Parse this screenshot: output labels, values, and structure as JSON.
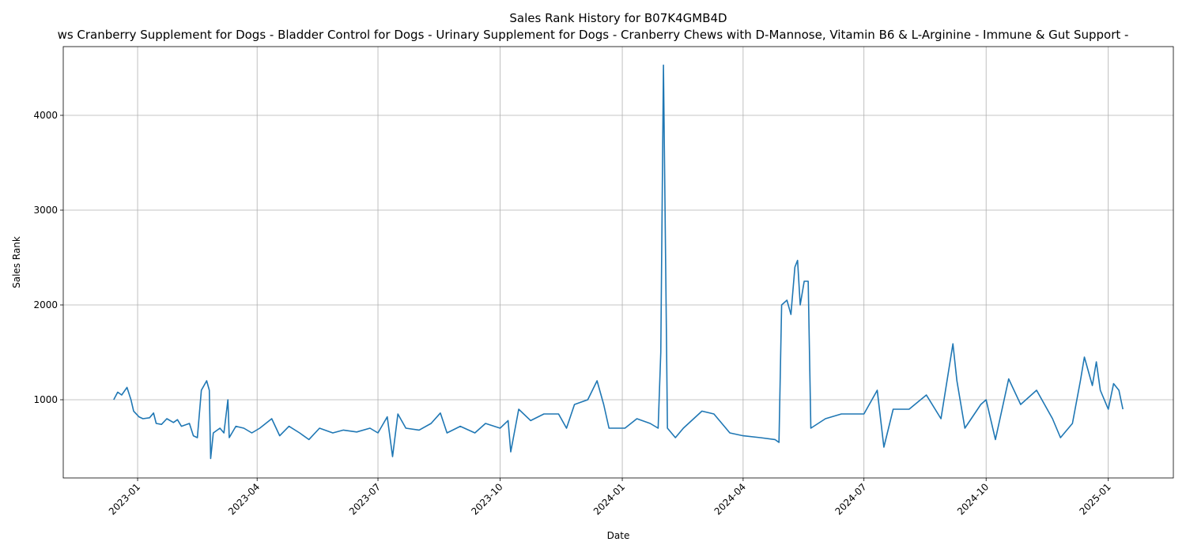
{
  "chart_data": {
    "type": "line",
    "title": "Sales Rank History for B07K4GMB4D",
    "subtitle": "ws Cranberry Supplement for Dogs - Bladder Control for Dogs - Urinary Supplement for Dogs - Cranberry Chews with D-Mannose, Vitamin B6 & L-Arginine - Immune & Gut Support -",
    "x_label": "Date",
    "y_label": "Sales Rank",
    "grid": true,
    "xlim": [
      "2022-11-06",
      "2025-02-19"
    ],
    "xticks": [
      {
        "value": "2023-01-01",
        "label": "2023-01"
      },
      {
        "value": "2023-04-01",
        "label": "2023-04"
      },
      {
        "value": "2023-07-01",
        "label": "2023-07"
      },
      {
        "value": "2023-10-01",
        "label": "2023-10"
      },
      {
        "value": "2024-01-01",
        "label": "2024-01"
      },
      {
        "value": "2024-04-01",
        "label": "2024-04"
      },
      {
        "value": "2024-07-01",
        "label": "2024-07"
      },
      {
        "value": "2024-10-01",
        "label": "2024-10"
      },
      {
        "value": "2025-01-01",
        "label": "2025-01"
      }
    ],
    "ylim": [
      175,
      4725
    ],
    "yticks": [
      1000,
      2000,
      3000,
      4000
    ],
    "x": [
      "2022-12-14",
      "2022-12-17",
      "2022-12-20",
      "2022-12-24",
      "2022-12-27",
      "2022-12-29",
      "2023-01-02",
      "2023-01-05",
      "2023-01-10",
      "2023-01-13",
      "2023-01-15",
      "2023-01-19",
      "2023-01-23",
      "2023-01-28",
      "2023-01-31",
      "2023-02-03",
      "2023-02-09",
      "2023-02-12",
      "2023-02-15",
      "2023-02-18",
      "2023-02-22",
      "2023-02-24",
      "2023-02-25",
      "2023-02-27",
      "2023-03-04",
      "2023-03-07",
      "2023-03-10",
      "2023-03-11",
      "2023-03-16",
      "2023-03-22",
      "2023-03-28",
      "2023-04-03",
      "2023-04-12",
      "2023-04-18",
      "2023-04-25",
      "2023-05-03",
      "2023-05-10",
      "2023-05-18",
      "2023-05-28",
      "2023-06-05",
      "2023-06-15",
      "2023-06-25",
      "2023-07-01",
      "2023-07-08",
      "2023-07-12",
      "2023-07-16",
      "2023-07-22",
      "2023-08-01",
      "2023-08-10",
      "2023-08-17",
      "2023-08-22",
      "2023-09-01",
      "2023-09-12",
      "2023-09-20",
      "2023-10-01",
      "2023-10-07",
      "2023-10-09",
      "2023-10-15",
      "2023-10-24",
      "2023-11-03",
      "2023-11-14",
      "2023-11-20",
      "2023-11-26",
      "2023-12-06",
      "2023-12-13",
      "2023-12-18",
      "2023-12-22",
      "2024-01-03",
      "2024-01-12",
      "2024-01-22",
      "2024-01-28",
      "2024-01-30",
      "2024-02-01",
      "2024-02-03",
      "2024-02-04",
      "2024-02-10",
      "2024-02-16",
      "2024-03-01",
      "2024-03-10",
      "2024-03-22",
      "2024-04-01",
      "2024-04-14",
      "2024-04-25",
      "2024-04-28",
      "2024-04-30",
      "2024-05-04",
      "2024-05-07",
      "2024-05-10",
      "2024-05-12",
      "2024-05-14",
      "2024-05-17",
      "2024-05-20",
      "2024-05-22",
      "2024-06-02",
      "2024-06-14",
      "2024-07-01",
      "2024-07-11",
      "2024-07-16",
      "2024-07-23",
      "2024-08-04",
      "2024-08-17",
      "2024-08-28",
      "2024-09-06",
      "2024-09-09",
      "2024-09-15",
      "2024-09-27",
      "2024-10-01",
      "2024-10-08",
      "2024-10-18",
      "2024-10-27",
      "2024-11-08",
      "2024-11-20",
      "2024-11-26",
      "2024-12-05",
      "2024-12-11",
      "2024-12-14",
      "2024-12-20",
      "2024-12-23",
      "2024-12-26",
      "2025-01-01",
      "2025-01-05",
      "2025-01-09",
      "2025-01-12"
    ],
    "series": [
      {
        "name": "Sales Rank",
        "color": "#1f77b4",
        "values": [
          1000,
          1080,
          1050,
          1130,
          1000,
          880,
          820,
          800,
          810,
          860,
          750,
          740,
          800,
          760,
          790,
          720,
          750,
          620,
          600,
          1100,
          1200,
          1100,
          380,
          650,
          700,
          650,
          1000,
          600,
          720,
          700,
          650,
          700,
          800,
          620,
          720,
          650,
          580,
          700,
          650,
          680,
          660,
          700,
          650,
          820,
          400,
          850,
          700,
          680,
          750,
          860,
          650,
          720,
          650,
          750,
          700,
          780,
          450,
          900,
          780,
          850,
          850,
          700,
          950,
          1000,
          1200,
          950,
          700,
          700,
          800,
          750,
          700,
          1500,
          4530,
          2000,
          700,
          600,
          700,
          880,
          850,
          650,
          620,
          600,
          580,
          550,
          2000,
          2050,
          1900,
          2400,
          2470,
          2000,
          2250,
          2250,
          700,
          800,
          850,
          850,
          1100,
          500,
          900,
          900,
          1050,
          800,
          1590,
          1200,
          700,
          950,
          1000,
          580,
          1220,
          950,
          1100,
          800,
          600,
          750,
          1200,
          1450,
          1150,
          1400,
          1100,
          900,
          1170,
          1100,
          900
        ]
      }
    ]
  }
}
